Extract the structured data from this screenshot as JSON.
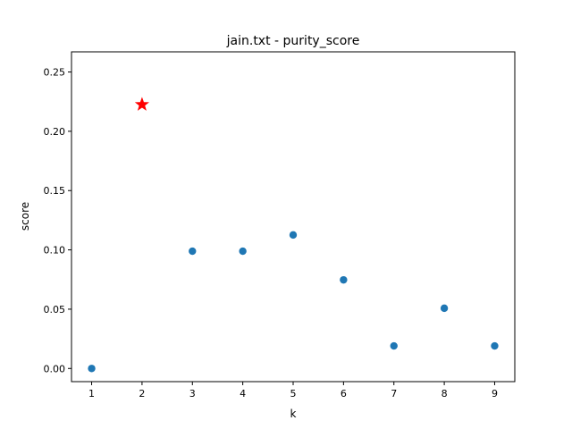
{
  "chart_data": {
    "type": "scatter",
    "title": "jain.txt - purity_score",
    "xlabel": "k",
    "ylabel": "score",
    "x": [
      1,
      2,
      3,
      4,
      5,
      6,
      7,
      8,
      9
    ],
    "y": [
      0.0,
      0.2225,
      0.0989,
      0.0989,
      0.1126,
      0.0747,
      0.019,
      0.0508,
      0.019
    ],
    "highlight": {
      "x": 2,
      "y": 0.2225,
      "marker": "star",
      "color": "#ff0000"
    },
    "point_color": "#1f77b4",
    "xlim": [
      0.6,
      9.4
    ],
    "ylim": [
      -0.0111,
      0.267
    ],
    "xticks": [
      "1",
      "2",
      "3",
      "4",
      "5",
      "6",
      "7",
      "8",
      "9"
    ],
    "yticks": [
      "0.00",
      "0.05",
      "0.10",
      "0.15",
      "0.20",
      "0.25"
    ],
    "grid": false,
    "legend": "none"
  }
}
